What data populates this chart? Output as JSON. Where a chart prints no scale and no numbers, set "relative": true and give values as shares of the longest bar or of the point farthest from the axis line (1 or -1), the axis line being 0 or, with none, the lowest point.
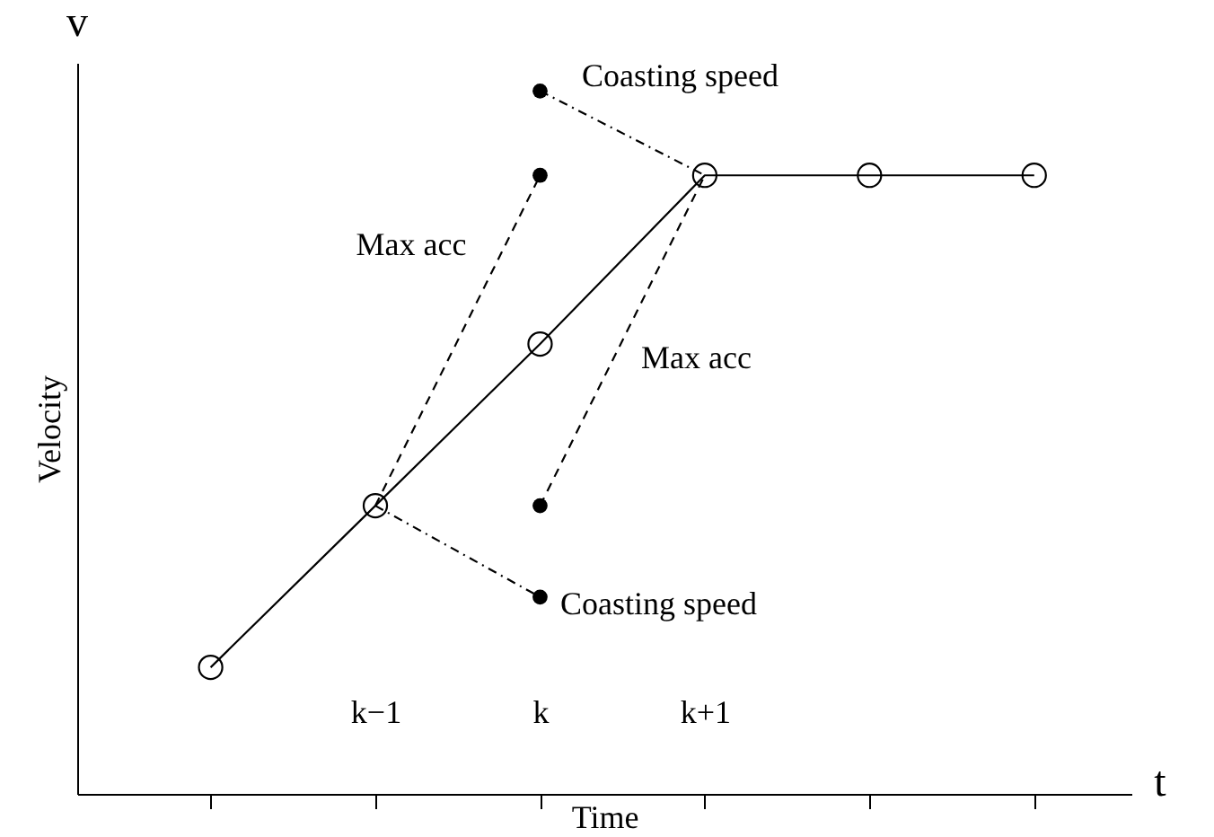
{
  "chart_data": {
    "type": "line",
    "relative": true,
    "xlabel": "Time",
    "ylabel": "Velocity",
    "categories": [
      null,
      "k−1",
      "k",
      "k+1",
      null,
      null
    ],
    "series": [
      {
        "color": "#000000",
        "marker": "circle",
        "line_style": "solid",
        "values": [
          0.18,
          0.41,
          0.64,
          0.88,
          0.88,
          0.88
        ]
      },
      {
        "color": "#000000",
        "line_style": "dashed",
        "values": [
          null,
          0.41,
          0.88,
          null,
          null,
          null
        ]
      },
      {
        "color": "#000000",
        "line_style": "dashed",
        "values": [
          null,
          null,
          0.41,
          0.88,
          null,
          null
        ]
      },
      {
        "color": "#000000",
        "line_style": "dotted",
        "values": [
          null,
          0.41,
          0.28,
          null,
          null,
          null
        ]
      },
      {
        "color": "#000000",
        "line_style": "dotted",
        "values": [
          null,
          null,
          1.0,
          0.88,
          null,
          null
        ]
      },
      {
        "type": "scatter",
        "color": "#000000",
        "marker": "circle",
        "values": [
          null,
          null,
          1.0,
          null,
          null,
          null
        ]
      },
      {
        "type": "scatter",
        "color": "#000000",
        "marker": "circle",
        "values": [
          null,
          null,
          0.88,
          null,
          null,
          null
        ]
      },
      {
        "type": "scatter",
        "color": "#000000",
        "marker": "circle",
        "values": [
          null,
          null,
          0.41,
          null,
          null,
          null
        ]
      },
      {
        "type": "scatter",
        "color": "#000000",
        "marker": "circle",
        "values": [
          null,
          null,
          0.28,
          null,
          null,
          null
        ]
      }
    ],
    "annotations": [
      "Coasting speed",
      "Max acc",
      "Max acc",
      "Coasting speed",
      "v",
      "t"
    ]
  }
}
